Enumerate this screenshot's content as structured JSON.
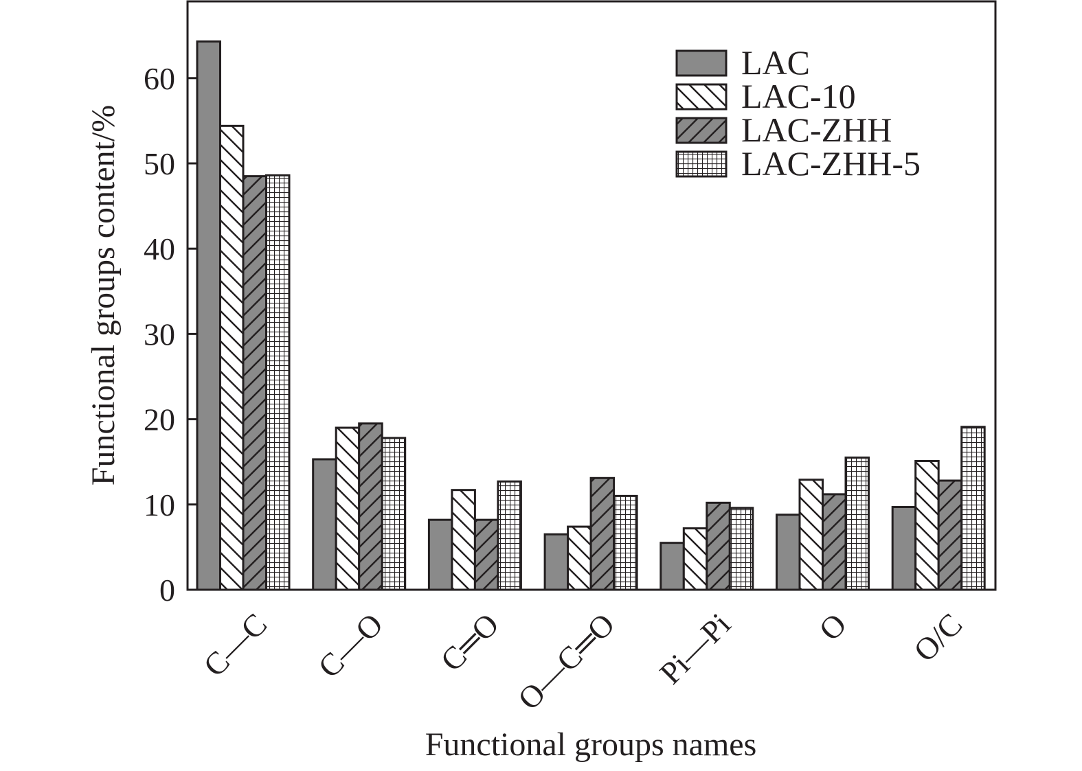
{
  "chart_data": {
    "type": "bar",
    "xlabel": "Functional groups names",
    "ylabel": "Functional groups content/%",
    "ylim": [
      0,
      69
    ],
    "yticks": [
      0,
      10,
      20,
      30,
      40,
      50,
      60
    ],
    "categories": [
      "C—C",
      "C—O",
      "C═O",
      "O—C═O",
      "Pi—Pi",
      "O",
      "O/C"
    ],
    "series": [
      {
        "name": "LAC",
        "pattern": "solid-gray",
        "values": [
          64.3,
          15.3,
          8.2,
          6.5,
          5.5,
          8.8,
          9.7
        ]
      },
      {
        "name": "LAC-10",
        "pattern": "backslash",
        "values": [
          54.4,
          19.0,
          11.7,
          7.4,
          7.2,
          12.9,
          15.1
        ]
      },
      {
        "name": "LAC-ZHH",
        "pattern": "slash-gray",
        "values": [
          48.5,
          19.5,
          8.2,
          13.1,
          10.2,
          11.2,
          12.8
        ]
      },
      {
        "name": "LAC-ZHH-5",
        "pattern": "grid",
        "values": [
          48.6,
          17.8,
          12.7,
          11.0,
          9.6,
          15.5,
          19.1
        ]
      }
    ],
    "legend_position": "top-right",
    "grid": false,
    "colors": {
      "solid": "#8a8a8a",
      "stroke": "#231f20",
      "background": "#ffffff"
    }
  }
}
